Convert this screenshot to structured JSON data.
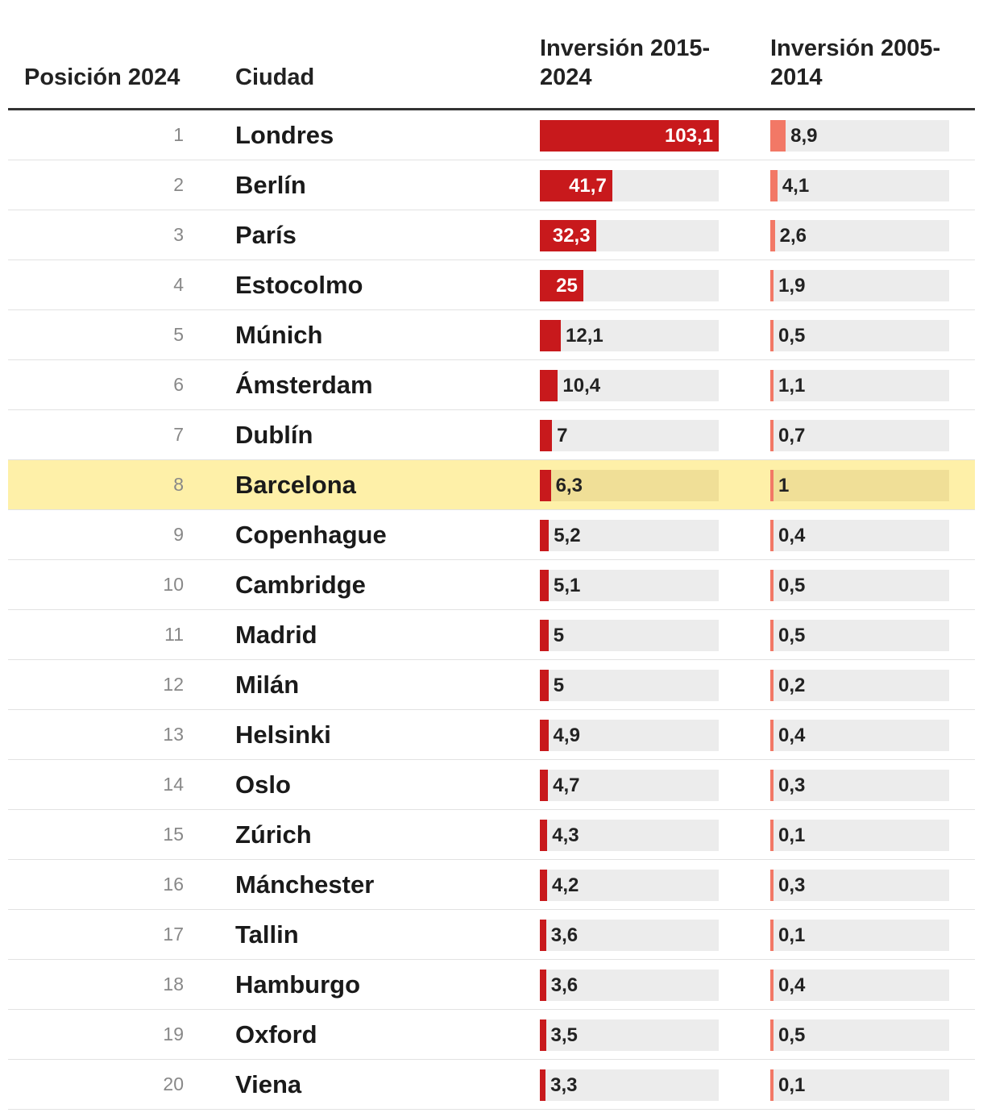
{
  "colors": {
    "bar_2015_2024": "#c8191c",
    "bar_2005_2014": "#f27866",
    "highlight": "#fef0a8"
  },
  "chart_data": {
    "type": "table",
    "columns": [
      "Posición 2024",
      "Ciudad",
      "Inversión 2015-2024",
      "Inversión 2005-2014"
    ],
    "highlight_city": "Barcelona",
    "max_2015_2024": 103.1,
    "max_2005_2014": 103.1,
    "rows": [
      {
        "pos": "1",
        "city": "Londres",
        "inv1": 103.1,
        "inv1_label": "103,1",
        "inv2": 8.9,
        "inv2_label": "8,9"
      },
      {
        "pos": "2",
        "city": "Berlín",
        "inv1": 41.7,
        "inv1_label": "41,7",
        "inv2": 4.1,
        "inv2_label": "4,1"
      },
      {
        "pos": "3",
        "city": "París",
        "inv1": 32.3,
        "inv1_label": "32,3",
        "inv2": 2.6,
        "inv2_label": "2,6"
      },
      {
        "pos": "4",
        "city": "Estocolmo",
        "inv1": 25,
        "inv1_label": "25",
        "inv2": 1.9,
        "inv2_label": "1,9"
      },
      {
        "pos": "5",
        "city": "Múnich",
        "inv1": 12.1,
        "inv1_label": "12,1",
        "inv2": 0.5,
        "inv2_label": "0,5"
      },
      {
        "pos": "6",
        "city": "Ámsterdam",
        "inv1": 10.4,
        "inv1_label": "10,4",
        "inv2": 1.1,
        "inv2_label": "1,1"
      },
      {
        "pos": "7",
        "city": "Dublín",
        "inv1": 7,
        "inv1_label": "7",
        "inv2": 0.7,
        "inv2_label": "0,7"
      },
      {
        "pos": "8",
        "city": "Barcelona",
        "inv1": 6.3,
        "inv1_label": "6,3",
        "inv2": 1,
        "inv2_label": "1"
      },
      {
        "pos": "9",
        "city": "Copenhague",
        "inv1": 5.2,
        "inv1_label": "5,2",
        "inv2": 0.4,
        "inv2_label": "0,4"
      },
      {
        "pos": "10",
        "city": "Cambridge",
        "inv1": 5.1,
        "inv1_label": "5,1",
        "inv2": 0.5,
        "inv2_label": "0,5"
      },
      {
        "pos": "11",
        "city": "Madrid",
        "inv1": 5,
        "inv1_label": "5",
        "inv2": 0.5,
        "inv2_label": "0,5"
      },
      {
        "pos": "12",
        "city": "Milán",
        "inv1": 5,
        "inv1_label": "5",
        "inv2": 0.2,
        "inv2_label": "0,2"
      },
      {
        "pos": "13",
        "city": "Helsinki",
        "inv1": 4.9,
        "inv1_label": "4,9",
        "inv2": 0.4,
        "inv2_label": "0,4"
      },
      {
        "pos": "14",
        "city": "Oslo",
        "inv1": 4.7,
        "inv1_label": "4,7",
        "inv2": 0.3,
        "inv2_label": "0,3"
      },
      {
        "pos": "15",
        "city": "Zúrich",
        "inv1": 4.3,
        "inv1_label": "4,3",
        "inv2": 0.1,
        "inv2_label": "0,1"
      },
      {
        "pos": "16",
        "city": "Mánchester",
        "inv1": 4.2,
        "inv1_label": "4,2",
        "inv2": 0.3,
        "inv2_label": "0,3"
      },
      {
        "pos": "17",
        "city": "Tallin",
        "inv1": 3.6,
        "inv1_label": "3,6",
        "inv2": 0.1,
        "inv2_label": "0,1"
      },
      {
        "pos": "18",
        "city": "Hamburgo",
        "inv1": 3.6,
        "inv1_label": "3,6",
        "inv2": 0.4,
        "inv2_label": "0,4"
      },
      {
        "pos": "19",
        "city": "Oxford",
        "inv1": 3.5,
        "inv1_label": "3,5",
        "inv2": 0.5,
        "inv2_label": "0,5"
      },
      {
        "pos": "20",
        "city": "Viena",
        "inv1": 3.3,
        "inv1_label": "3,3",
        "inv2": 0.1,
        "inv2_label": "0,1"
      }
    ]
  },
  "header": {
    "pos": "Posición 2024",
    "city": "Ciudad",
    "inv1": "Inversión 2015-2024",
    "inv2": "Inversión 2005-2014"
  }
}
